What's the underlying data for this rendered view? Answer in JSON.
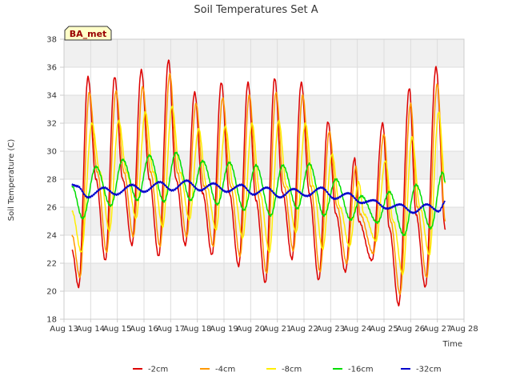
{
  "chart_data": {
    "type": "line",
    "title": "Soil Temperatures Set A",
    "xlabel": "Time",
    "ylabel": "Soil Temperature (C)",
    "badge": "BA_met",
    "ylim": [
      18,
      38
    ],
    "yticks": [
      18,
      20,
      22,
      24,
      26,
      28,
      30,
      32,
      34,
      36,
      38
    ],
    "xlim": [
      13,
      28
    ],
    "xticks": [
      {
        "pos": 13,
        "label": "Aug 13"
      },
      {
        "pos": 14,
        "label": "Aug 14"
      },
      {
        "pos": 15,
        "label": "Aug 15"
      },
      {
        "pos": 16,
        "label": "Aug 16"
      },
      {
        "pos": 17,
        "label": "Aug 17"
      },
      {
        "pos": 18,
        "label": "Aug 18"
      },
      {
        "pos": 19,
        "label": "Aug 19"
      },
      {
        "pos": 20,
        "label": "Aug 20"
      },
      {
        "pos": 21,
        "label": "Aug 21"
      },
      {
        "pos": 22,
        "label": "Aug 22"
      },
      {
        "pos": 23,
        "label": "Aug 23"
      },
      {
        "pos": 24,
        "label": "Aug 24"
      },
      {
        "pos": 25,
        "label": "Aug 25"
      },
      {
        "pos": 26,
        "label": "Aug 26"
      },
      {
        "pos": 27,
        "label": "Aug 27"
      },
      {
        "pos": 28,
        "label": "Aug 28"
      }
    ],
    "grid": true,
    "legend_position": "bottom",
    "series": [
      {
        "name": "-2cm",
        "color": "#dd0000",
        "points": [
          [
            13.3,
            22.9
          ],
          [
            13.55,
            20.3
          ],
          [
            13.9,
            35.3
          ],
          [
            14.2,
            28.0
          ],
          [
            14.55,
            22.2
          ],
          [
            14.9,
            35.3
          ],
          [
            15.2,
            28.0
          ],
          [
            15.55,
            23.3
          ],
          [
            15.9,
            35.8
          ],
          [
            16.2,
            28.0
          ],
          [
            16.55,
            22.5
          ],
          [
            16.92,
            36.5
          ],
          [
            17.2,
            28.0
          ],
          [
            17.55,
            23.3
          ],
          [
            17.9,
            34.2
          ],
          [
            18.2,
            27.0
          ],
          [
            18.55,
            22.6
          ],
          [
            18.9,
            34.9
          ],
          [
            19.2,
            27.0
          ],
          [
            19.55,
            21.8
          ],
          [
            19.9,
            34.9
          ],
          [
            20.2,
            26.5
          ],
          [
            20.55,
            20.6
          ],
          [
            20.9,
            35.2
          ],
          [
            21.2,
            27.0
          ],
          [
            21.55,
            22.3
          ],
          [
            21.9,
            34.9
          ],
          [
            22.2,
            27.0
          ],
          [
            22.55,
            20.8
          ],
          [
            22.9,
            32.1
          ],
          [
            23.2,
            25.5
          ],
          [
            23.55,
            21.4
          ],
          [
            23.9,
            29.5
          ],
          [
            24.05,
            25.0
          ],
          [
            24.55,
            22.2
          ],
          [
            24.95,
            32.0
          ],
          [
            25.2,
            24.5
          ],
          [
            25.55,
            19.0
          ],
          [
            25.95,
            34.5
          ],
          [
            26.2,
            25.5
          ],
          [
            26.55,
            20.3
          ],
          [
            26.95,
            36.0
          ],
          [
            27.3,
            24.4
          ]
        ]
      },
      {
        "name": "-4cm",
        "color": "#ff9900",
        "points": [
          [
            13.3,
            24.0
          ],
          [
            13.6,
            21.0
          ],
          [
            13.95,
            34.2
          ],
          [
            14.25,
            28.5
          ],
          [
            14.6,
            22.8
          ],
          [
            14.95,
            34.3
          ],
          [
            15.25,
            28.5
          ],
          [
            15.6,
            23.9
          ],
          [
            15.95,
            34.6
          ],
          [
            16.25,
            28.5
          ],
          [
            16.6,
            23.2
          ],
          [
            16.97,
            35.5
          ],
          [
            17.25,
            28.5
          ],
          [
            17.6,
            23.9
          ],
          [
            17.95,
            33.4
          ],
          [
            18.25,
            27.5
          ],
          [
            18.6,
            23.2
          ],
          [
            18.95,
            33.8
          ],
          [
            19.25,
            27.5
          ],
          [
            19.6,
            22.5
          ],
          [
            19.95,
            34.0
          ],
          [
            20.25,
            27.0
          ],
          [
            20.6,
            21.3
          ],
          [
            20.95,
            34.2
          ],
          [
            21.25,
            27.5
          ],
          [
            21.6,
            22.9
          ],
          [
            21.95,
            34.0
          ],
          [
            22.25,
            27.5
          ],
          [
            22.6,
            21.4
          ],
          [
            22.95,
            31.4
          ],
          [
            23.25,
            26.0
          ],
          [
            23.6,
            22.0
          ],
          [
            23.95,
            28.9
          ],
          [
            24.1,
            25.5
          ],
          [
            24.6,
            22.7
          ],
          [
            25.0,
            31.2
          ],
          [
            25.25,
            25.0
          ],
          [
            25.6,
            19.8
          ],
          [
            26.0,
            33.4
          ],
          [
            26.25,
            26.0
          ],
          [
            26.6,
            21.0
          ],
          [
            27.0,
            34.8
          ],
          [
            27.3,
            25.0
          ]
        ]
      },
      {
        "name": "-8cm",
        "color": "#ffee00",
        "points": [
          [
            13.3,
            25.7
          ],
          [
            13.65,
            22.8
          ],
          [
            14.05,
            32.0
          ],
          [
            14.35,
            28.5
          ],
          [
            14.7,
            24.3
          ],
          [
            15.05,
            32.2
          ],
          [
            15.35,
            28.5
          ],
          [
            15.7,
            25.2
          ],
          [
            16.05,
            32.8
          ],
          [
            16.35,
            28.5
          ],
          [
            16.7,
            24.6
          ],
          [
            17.05,
            33.2
          ],
          [
            17.35,
            28.5
          ],
          [
            17.7,
            25.1
          ],
          [
            18.05,
            31.6
          ],
          [
            18.35,
            27.5
          ],
          [
            18.7,
            24.4
          ],
          [
            19.05,
            31.8
          ],
          [
            19.35,
            27.5
          ],
          [
            19.7,
            23.8
          ],
          [
            20.05,
            32.0
          ],
          [
            20.35,
            27.0
          ],
          [
            20.7,
            22.8
          ],
          [
            21.05,
            32.2
          ],
          [
            21.35,
            27.5
          ],
          [
            21.7,
            24.2
          ],
          [
            22.05,
            32.0
          ],
          [
            22.35,
            27.5
          ],
          [
            22.7,
            23.0
          ],
          [
            23.05,
            29.8
          ],
          [
            23.35,
            26.0
          ],
          [
            23.7,
            23.2
          ],
          [
            24.05,
            27.8
          ],
          [
            24.25,
            25.5
          ],
          [
            24.7,
            23.6
          ],
          [
            25.05,
            29.3
          ],
          [
            25.35,
            25.0
          ],
          [
            25.7,
            21.2
          ],
          [
            26.05,
            31.0
          ],
          [
            26.35,
            26.0
          ],
          [
            26.7,
            22.6
          ],
          [
            27.05,
            32.8
          ],
          [
            27.3,
            27.7
          ]
        ]
      },
      {
        "name": "-16cm",
        "color": "#00dd00",
        "points": [
          [
            13.3,
            27.5
          ],
          [
            13.7,
            25.2
          ],
          [
            14.2,
            28.9
          ],
          [
            14.75,
            26.1
          ],
          [
            15.2,
            29.4
          ],
          [
            15.75,
            26.5
          ],
          [
            16.2,
            29.7
          ],
          [
            16.75,
            26.4
          ],
          [
            17.2,
            29.9
          ],
          [
            17.75,
            26.5
          ],
          [
            18.2,
            29.3
          ],
          [
            18.75,
            26.2
          ],
          [
            19.2,
            29.2
          ],
          [
            19.75,
            25.8
          ],
          [
            20.2,
            29.0
          ],
          [
            20.75,
            25.4
          ],
          [
            21.2,
            29.0
          ],
          [
            21.75,
            25.9
          ],
          [
            22.2,
            29.1
          ],
          [
            22.75,
            25.4
          ],
          [
            23.2,
            28.0
          ],
          [
            23.75,
            25.1
          ],
          [
            24.15,
            26.8
          ],
          [
            24.75,
            24.9
          ],
          [
            25.2,
            27.1
          ],
          [
            25.75,
            24.0
          ],
          [
            26.2,
            27.6
          ],
          [
            26.75,
            24.5
          ],
          [
            27.2,
            28.5
          ],
          [
            27.3,
            27.8
          ]
        ]
      },
      {
        "name": "-32cm",
        "color": "#0000cc",
        "points": [
          [
            13.3,
            27.6
          ],
          [
            13.5,
            27.5
          ],
          [
            13.9,
            26.7
          ],
          [
            14.5,
            27.4
          ],
          [
            14.95,
            26.9
          ],
          [
            15.55,
            27.6
          ],
          [
            16.0,
            27.1
          ],
          [
            16.6,
            27.8
          ],
          [
            17.05,
            27.2
          ],
          [
            17.6,
            27.9
          ],
          [
            18.1,
            27.2
          ],
          [
            18.6,
            27.7
          ],
          [
            19.1,
            27.1
          ],
          [
            19.65,
            27.6
          ],
          [
            20.1,
            26.9
          ],
          [
            20.6,
            27.4
          ],
          [
            21.1,
            26.7
          ],
          [
            21.6,
            27.3
          ],
          [
            22.1,
            26.8
          ],
          [
            22.65,
            27.4
          ],
          [
            23.15,
            26.6
          ],
          [
            23.65,
            27.0
          ],
          [
            24.15,
            26.3
          ],
          [
            24.6,
            26.5
          ],
          [
            25.1,
            25.9
          ],
          [
            25.6,
            26.2
          ],
          [
            26.1,
            25.6
          ],
          [
            26.6,
            26.2
          ],
          [
            27.05,
            25.7
          ],
          [
            27.3,
            26.4
          ]
        ]
      }
    ]
  },
  "colors": {
    "plot_bg_band": "#f0f0f0",
    "grid": "#dddddd",
    "badge_bg": "#ffffc8"
  }
}
